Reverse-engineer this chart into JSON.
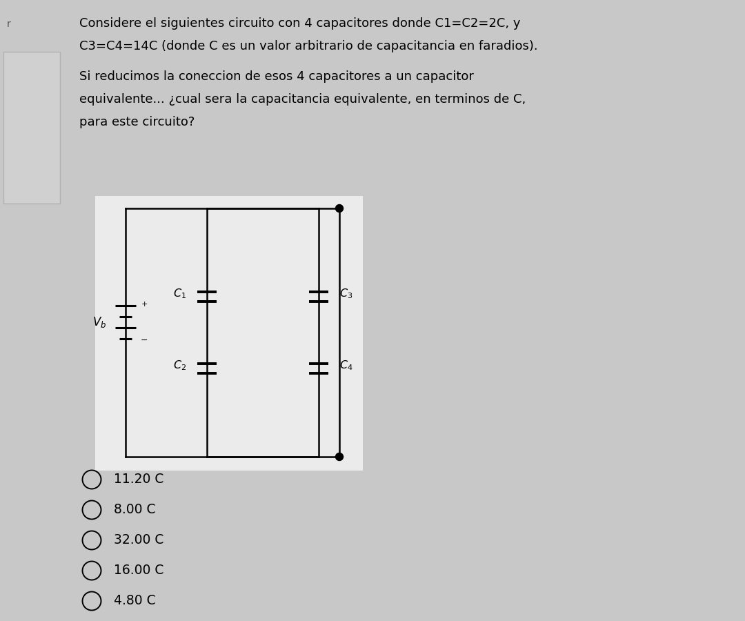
{
  "bg_color": "#c8c8c8",
  "circuit_bg": "#ebebeb",
  "text_color": "#000000",
  "title_line1": "Considere el siguientes circuito con 4 capacitores donde C1=C2=2C, y",
  "title_line2": "C3=C4=14C (donde C es un valor arbitrario de capacitancia en faradios).",
  "title_line3": "Si reducimos la coneccion de esos 4 capacitores a un capacitor",
  "title_line4": "equivalente... ¿cual sera la capacitancia equivalente, en terminos de C,",
  "title_line5": "para este circuito?",
  "options": [
    "11.20 C",
    "8.00 C",
    "32.00 C",
    "16.00 C",
    "4.80 C"
  ],
  "font_size_title": 13.0,
  "font_size_options": 13.5,
  "font_size_cap_label": 11.5,
  "font_size_vb": 12.0,
  "card_color": "#d0d0d0",
  "card_edge": "#b0b0b0"
}
